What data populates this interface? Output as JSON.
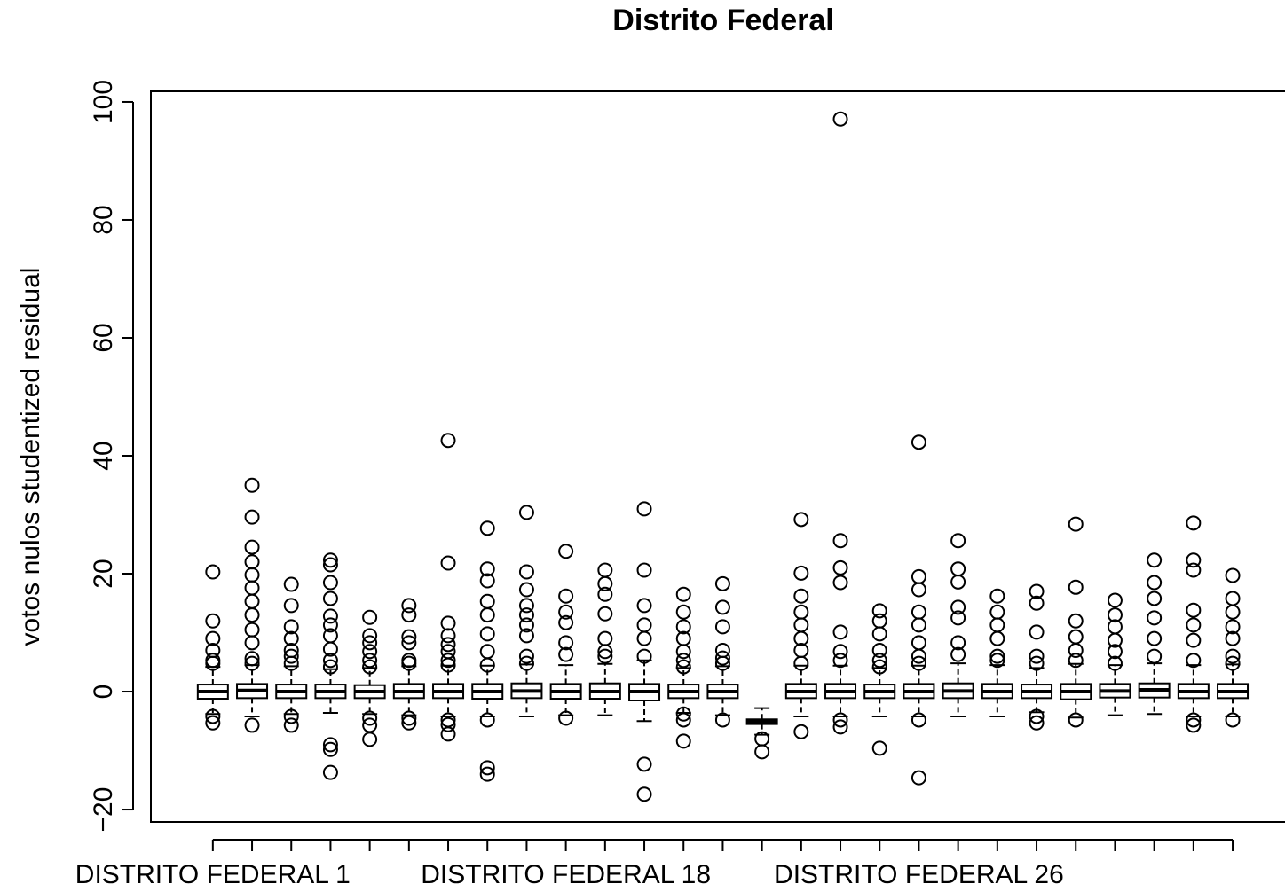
{
  "chart_data": {
    "type": "box",
    "title": "Distrito Federal",
    "ylabel": "votos nulos studentized residual",
    "categories": [
      "DISTRITO FEDERAL 1",
      null,
      null,
      null,
      null,
      null,
      null,
      null,
      null,
      "DISTRITO FEDERAL 18",
      null,
      null,
      null,
      null,
      null,
      null,
      null,
      null,
      "DISTRITO FEDERAL 26",
      null,
      null,
      null,
      null,
      null,
      null,
      null,
      null
    ],
    "xlim": [
      -0.58,
      28.58
    ],
    "ylim": [
      -22.1,
      101.8
    ],
    "yticks": [
      {
        "value": -20,
        "label": "−20"
      },
      0,
      20,
      40,
      60,
      80,
      100
    ],
    "boxes": [
      {
        "low": -3.8,
        "q1": -1.2,
        "median": 0,
        "q3": 1.2,
        "high": 4.2,
        "outliers": [
          20.3,
          12,
          9,
          7,
          5.3,
          4.8,
          -4.2,
          -5.3
        ]
      },
      {
        "low": -4.2,
        "q1": -1.1,
        "median": 0.2,
        "q3": 1.3,
        "high": 4.5,
        "outliers": [
          35,
          29.6,
          24.5,
          22,
          19.8,
          17.6,
          15.3,
          13,
          10.5,
          8.3,
          5.6,
          4.8,
          -5.7
        ]
      },
      {
        "low": -3.8,
        "q1": -1.1,
        "median": 0,
        "q3": 1.2,
        "high": 4.3,
        "outliers": [
          18.2,
          14.6,
          11,
          9,
          7,
          6,
          4.8,
          -4.2,
          -5.7
        ]
      },
      {
        "low": -3.6,
        "q1": -1.1,
        "median": 0,
        "q3": 1.2,
        "high": 3.8,
        "outliers": [
          22.3,
          21.5,
          18.5,
          15.8,
          12.8,
          11.3,
          9.5,
          7.2,
          5.3,
          4.2,
          -9,
          -9.8,
          -13.7
        ]
      },
      {
        "low": -3.8,
        "q1": -1.1,
        "median": 0,
        "q3": 1.1,
        "high": 4,
        "outliers": [
          12.6,
          9.5,
          8.3,
          6.8,
          5.3,
          4.2,
          -4.5,
          -5.7,
          -8.1
        ]
      },
      {
        "low": -4,
        "q1": -1.1,
        "median": 0,
        "q3": 1.3,
        "high": 4.3,
        "outliers": [
          14.6,
          13,
          9.3,
          8.3,
          5.3,
          4.8,
          -4.5,
          -5.3
        ]
      },
      {
        "low": -4.2,
        "q1": -1.1,
        "median": 0,
        "q3": 1.3,
        "high": 4.4,
        "outliers": [
          42.6,
          21.8,
          11.6,
          9.5,
          8,
          6.8,
          5.3,
          4.5,
          -4.8,
          -5.6,
          -7.2
        ]
      },
      {
        "low": -4.2,
        "q1": -1.2,
        "median": 0,
        "q3": 1.3,
        "high": 4.4,
        "outliers": [
          27.7,
          20.8,
          18.8,
          15.3,
          13,
          9.8,
          6.8,
          4.5,
          -4.8,
          -12.9,
          -14
        ]
      },
      {
        "low": -4.2,
        "q1": -1.1,
        "median": 0.1,
        "q3": 1.4,
        "high": 4.6,
        "outliers": [
          30.4,
          20.3,
          17.3,
          14.6,
          13,
          11.3,
          9.5,
          6,
          4.8
        ]
      },
      {
        "low": -4,
        "q1": -1.2,
        "median": 0,
        "q3": 1.3,
        "high": 4.5,
        "outliers": [
          23.8,
          16.2,
          13.5,
          11.7,
          8.3,
          6.3,
          -4.5
        ]
      },
      {
        "low": -4,
        "q1": -1.2,
        "median": 0,
        "q3": 1.4,
        "high": 4.7,
        "outliers": [
          20.6,
          18.3,
          16.5,
          13.2,
          9,
          6.8,
          6
        ]
      },
      {
        "low": -5,
        "q1": -1.5,
        "median": 0,
        "q3": 1.3,
        "high": 5.3,
        "outliers": [
          31,
          20.6,
          14.6,
          11.3,
          9,
          6,
          -12.3,
          -17.4
        ]
      },
      {
        "low": -3.6,
        "q1": -1.1,
        "median": 0,
        "q3": 1.2,
        "high": 4,
        "outliers": [
          16.5,
          13.5,
          11,
          9,
          6.8,
          5.3,
          4.2,
          -3.8,
          -4.8,
          -8.4
        ]
      },
      {
        "low": -4,
        "q1": -1.1,
        "median": 0,
        "q3": 1.2,
        "high": 4.3,
        "outliers": [
          18.3,
          14.3,
          11,
          7,
          5.7,
          4.8,
          -4.8
        ]
      },
      {
        "low": -7.3,
        "q1": -5.5,
        "median": -5.1,
        "q3": -4.7,
        "high": -2.8,
        "outliers": [
          -8,
          -10.2
        ]
      },
      {
        "low": -4.2,
        "q1": -1.1,
        "median": 0,
        "q3": 1.3,
        "high": 4.4,
        "outliers": [
          29.2,
          20.1,
          16.2,
          13.5,
          11.3,
          9,
          7,
          4.8,
          -6.8
        ]
      },
      {
        "low": -4.2,
        "q1": -1.1,
        "median": 0,
        "q3": 1.3,
        "high": 4.4,
        "outliers": [
          97.1,
          25.6,
          21,
          18.5,
          10.1,
          6.8,
          5.3,
          -4.8,
          -6
        ]
      },
      {
        "low": -4.2,
        "q1": -1.1,
        "median": 0,
        "q3": 1.2,
        "high": 4,
        "outliers": [
          13.7,
          12,
          9.8,
          7,
          5.3,
          4.2,
          -9.6
        ]
      },
      {
        "low": -4.2,
        "q1": -1.1,
        "median": 0,
        "q3": 1.3,
        "high": 4.4,
        "outliers": [
          42.3,
          19.5,
          17.3,
          13.5,
          11.3,
          8.3,
          6,
          4.8,
          -4.8,
          -14.6
        ]
      },
      {
        "low": -4.2,
        "q1": -1.1,
        "median": 0.1,
        "q3": 1.4,
        "high": 4.8,
        "outliers": [
          25.6,
          20.8,
          18.6,
          14.3,
          12.5,
          8.3,
          6.3
        ]
      },
      {
        "low": -4.2,
        "q1": -1.1,
        "median": 0,
        "q3": 1.3,
        "high": 4.5,
        "outliers": [
          16.2,
          13.5,
          11.3,
          9,
          6,
          5.3
        ]
      },
      {
        "low": -3.5,
        "q1": -1.1,
        "median": 0,
        "q3": 1.2,
        "high": 4,
        "outliers": [
          17,
          15,
          10.1,
          6,
          4.8,
          -4.2,
          -5.3
        ]
      },
      {
        "low": -4.4,
        "q1": -1.3,
        "median": 0,
        "q3": 1.3,
        "high": 4.7,
        "outliers": [
          28.4,
          17.7,
          12,
          9.3,
          7,
          5.3,
          -4.8
        ]
      },
      {
        "low": -4,
        "q1": -1,
        "median": 0.1,
        "q3": 1.3,
        "high": 4.5,
        "outliers": [
          15.5,
          13,
          11,
          8.7,
          6.8,
          4.8
        ]
      },
      {
        "low": -3.8,
        "q1": -1,
        "median": 0.3,
        "q3": 1.4,
        "high": 4.8,
        "outliers": [
          22.3,
          18.5,
          15.8,
          12.5,
          9,
          6
        ]
      },
      {
        "low": -4.2,
        "q1": -1.1,
        "median": 0,
        "q3": 1.3,
        "high": 4.5,
        "outliers": [
          28.6,
          22.3,
          20.6,
          13.8,
          11.3,
          8.7,
          5.3,
          -4.8,
          -5.7
        ]
      },
      {
        "low": -4.2,
        "q1": -1.1,
        "median": 0,
        "q3": 1.3,
        "high": 4.6,
        "outliers": [
          19.7,
          15.8,
          13.5,
          11,
          9,
          6,
          4.8,
          -4.8
        ]
      }
    ]
  }
}
